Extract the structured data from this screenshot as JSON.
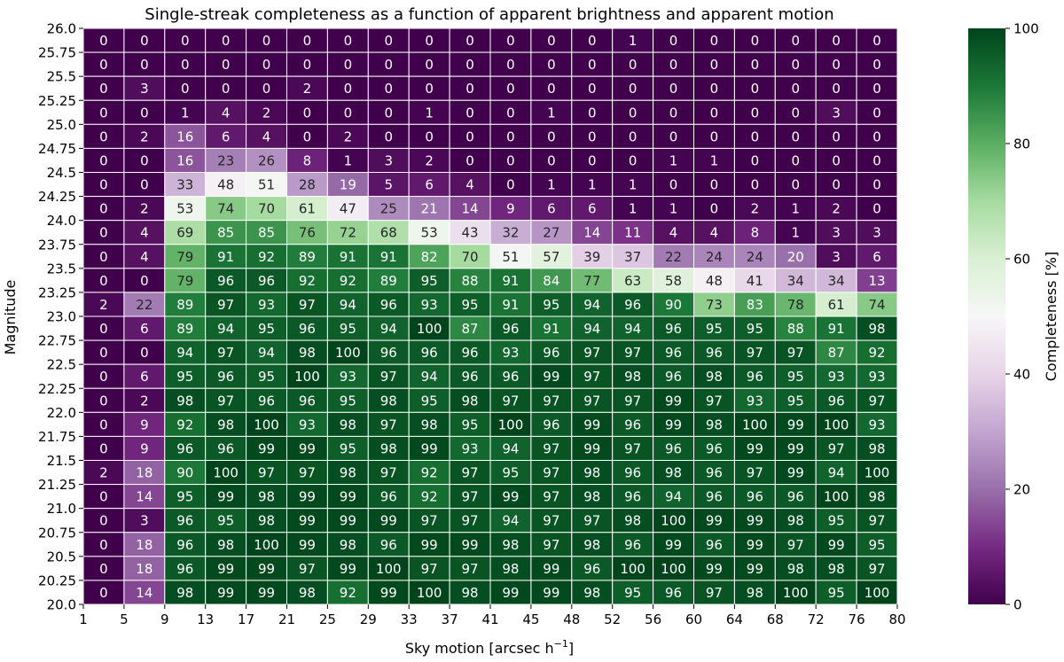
{
  "chart_data": {
    "type": "heatmap",
    "title": "Single-streak completeness as a function of apparent brightness and apparent motion",
    "xlabel": "Sky motion [arcsec h",
    "xlabel_sup": "−1",
    "xlabel_end": "]",
    "ylabel": "Magnitude",
    "colorbar_label": "Completeness [%]",
    "colorbar_ticks": [
      "0",
      "20",
      "40",
      "60",
      "80",
      "100"
    ],
    "color_range": [
      0,
      100
    ],
    "colormap": [
      "#40004b",
      "#762a83",
      "#9970ab",
      "#c2a5cf",
      "#e7d4e8",
      "#f7f7f7",
      "#d9f0d3",
      "#a6dba0",
      "#5aae61",
      "#1b7837",
      "#00441b"
    ],
    "x_edges": [
      "1",
      "5",
      "9",
      "13",
      "17",
      "21",
      "25",
      "29",
      "33",
      "37",
      "41",
      "45",
      "48",
      "52",
      "56",
      "60",
      "64",
      "68",
      "72",
      "76",
      "80"
    ],
    "y_edges": [
      "26.0",
      "25.75",
      "25.5",
      "25.25",
      "25.0",
      "24.75",
      "24.5",
      "24.25",
      "24.0",
      "23.75",
      "23.5",
      "23.25",
      "23.0",
      "22.75",
      "22.5",
      "22.25",
      "22.0",
      "21.75",
      "21.5",
      "21.25",
      "21.0",
      "20.75",
      "20.5",
      "20.25",
      "20.0"
    ],
    "values": [
      [
        0,
        0,
        0,
        0,
        0,
        0,
        0,
        0,
        0,
        0,
        0,
        0,
        0,
        1,
        0,
        0,
        0,
        0,
        0,
        0
      ],
      [
        0,
        0,
        0,
        0,
        0,
        0,
        0,
        0,
        0,
        0,
        0,
        0,
        0,
        0,
        0,
        0,
        0,
        0,
        0,
        0
      ],
      [
        0,
        3,
        0,
        0,
        0,
        2,
        0,
        0,
        0,
        0,
        0,
        0,
        0,
        0,
        0,
        0,
        0,
        0,
        0,
        0
      ],
      [
        0,
        0,
        1,
        4,
        2,
        0,
        0,
        0,
        1,
        0,
        0,
        1,
        0,
        0,
        0,
        0,
        0,
        0,
        3,
        0
      ],
      [
        0,
        2,
        16,
        6,
        4,
        0,
        2,
        0,
        0,
        0,
        0,
        0,
        0,
        0,
        0,
        0,
        0,
        0,
        0,
        0
      ],
      [
        0,
        0,
        16,
        23,
        26,
        8,
        1,
        3,
        2,
        0,
        0,
        0,
        0,
        0,
        1,
        1,
        0,
        0,
        0,
        0
      ],
      [
        0,
        0,
        33,
        48,
        51,
        28,
        19,
        5,
        6,
        4,
        0,
        1,
        1,
        1,
        0,
        0,
        0,
        0,
        0,
        0
      ],
      [
        0,
        2,
        53,
        74,
        70,
        61,
        47,
        25,
        21,
        14,
        9,
        6,
        6,
        1,
        1,
        0,
        2,
        1,
        2,
        0
      ],
      [
        0,
        4,
        69,
        85,
        85,
        76,
        72,
        68,
        53,
        43,
        32,
        27,
        14,
        11,
        4,
        4,
        8,
        1,
        3,
        3
      ],
      [
        0,
        4,
        79,
        91,
        92,
        89,
        91,
        91,
        82,
        70,
        51,
        57,
        39,
        37,
        22,
        24,
        24,
        20,
        3,
        6
      ],
      [
        0,
        0,
        79,
        96,
        96,
        92,
        92,
        89,
        95,
        88,
        91,
        84,
        77,
        63,
        58,
        48,
        41,
        34,
        34,
        13
      ],
      [
        2,
        22,
        89,
        97,
        93,
        97,
        94,
        96,
        93,
        95,
        91,
        95,
        94,
        96,
        90,
        73,
        83,
        78,
        61,
        74
      ],
      [
        0,
        6,
        89,
        94,
        95,
        96,
        95,
        94,
        100,
        87,
        96,
        91,
        94,
        94,
        96,
        95,
        95,
        88,
        91,
        98
      ],
      [
        0,
        0,
        94,
        97,
        94,
        98,
        100,
        96,
        96,
        96,
        93,
        96,
        97,
        97,
        96,
        96,
        97,
        97,
        87,
        92
      ],
      [
        0,
        6,
        95,
        96,
        95,
        100,
        93,
        97,
        94,
        96,
        96,
        99,
        97,
        98,
        96,
        98,
        96,
        95,
        93,
        93
      ],
      [
        0,
        2,
        98,
        97,
        96,
        96,
        95,
        98,
        95,
        98,
        97,
        97,
        97,
        97,
        99,
        97,
        93,
        95,
        96,
        97
      ],
      [
        0,
        9,
        92,
        98,
        100,
        93,
        98,
        97,
        98,
        95,
        100,
        96,
        99,
        96,
        99,
        98,
        100,
        99,
        100,
        93
      ],
      [
        0,
        9,
        96,
        96,
        99,
        99,
        95,
        98,
        99,
        93,
        94,
        97,
        99,
        97,
        96,
        96,
        99,
        99,
        97,
        98
      ],
      [
        2,
        18,
        90,
        100,
        97,
        97,
        98,
        97,
        92,
        97,
        95,
        97,
        98,
        96,
        98,
        96,
        97,
        99,
        94,
        100
      ],
      [
        0,
        14,
        95,
        99,
        98,
        99,
        99,
        96,
        92,
        97,
        99,
        97,
        98,
        96,
        94,
        96,
        96,
        96,
        100,
        98
      ],
      [
        0,
        3,
        96,
        95,
        98,
        99,
        99,
        99,
        97,
        97,
        94,
        97,
        97,
        98,
        100,
        99,
        99,
        98,
        95,
        97
      ],
      [
        0,
        18,
        96,
        98,
        100,
        99,
        98,
        96,
        99,
        99,
        98,
        97,
        98,
        96,
        99,
        96,
        99,
        97,
        99,
        95
      ],
      [
        0,
        18,
        96,
        99,
        99,
        97,
        99,
        100,
        97,
        97,
        98,
        99,
        96,
        100,
        100,
        99,
        99,
        98,
        98,
        97
      ],
      [
        0,
        14,
        98,
        99,
        99,
        98,
        92,
        99,
        100,
        98,
        99,
        99,
        98,
        95,
        96,
        97,
        98,
        100,
        95,
        100
      ]
    ]
  }
}
